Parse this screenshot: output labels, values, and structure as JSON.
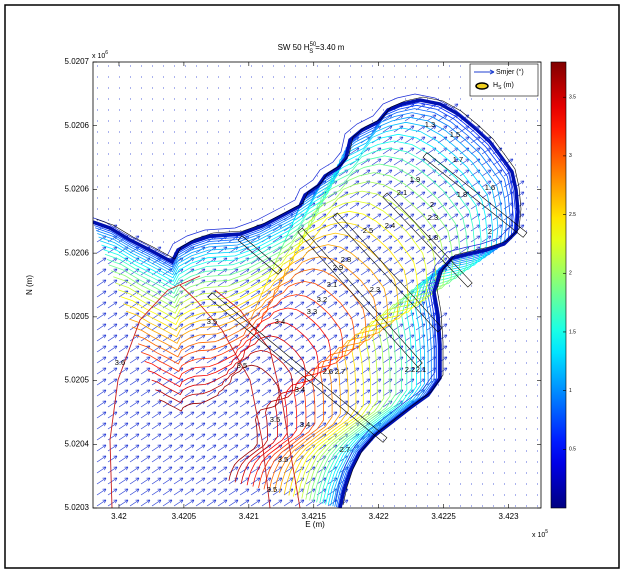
{
  "chart_data": {
    "type": "contour",
    "title": {
      "prefix": "SW 50 H",
      "sup": "50",
      "sub": "S",
      "suffix": "=3.40 m"
    },
    "xlabel": "E (m)",
    "ylabel": "N (m)",
    "x_multiplier": {
      "base": "x 10",
      "exponent": "5"
    },
    "y_multiplier": {
      "base": "x 10",
      "exponent": "6"
    },
    "xlim": [
      3.4198,
      3.42325
    ],
    "xticks": [
      3.42,
      3.4205,
      3.421,
      3.4215,
      3.422,
      3.4225,
      3.423
    ],
    "ylim": [
      5.02035,
      5.0207
    ],
    "yticks": [
      {
        "value": 5.0207,
        "label": "5.0207"
      },
      {
        "value": 5.02065,
        "label": "5.0206"
      },
      {
        "value": 5.0206,
        "label": "5.0206"
      },
      {
        "value": 5.02055,
        "label": "5.0206"
      },
      {
        "value": 5.0205,
        "label": "5.0205"
      },
      {
        "value": 5.02045,
        "label": "5.0205"
      },
      {
        "value": 5.0204,
        "label": "5.0204"
      },
      {
        "value": 5.02035,
        "label": "5.0203"
      }
    ],
    "clim": [
      0,
      3.8
    ],
    "cticks": [
      0.5,
      1,
      1.5,
      2,
      2.5,
      3,
      3.5
    ],
    "colormap": "jet",
    "legend": [
      {
        "name": "Smjer (°)",
        "color": "#1f3fd0"
      },
      {
        "name": "H",
        "sub": "S",
        "suffix": " (m)",
        "color": "#000000"
      }
    ],
    "contour_labels": [
      3.6,
      3.5,
      3.5,
      3.5,
      3.5,
      3.5,
      3.4,
      3.4,
      3.4,
      3.3,
      3.2,
      3.1,
      2.9,
      2.8,
      2.7,
      2.7,
      2.6,
      2.5,
      2.4,
      2.3,
      2.3,
      2.2,
      2.1,
      2.1,
      2,
      2,
      1.9,
      1.8,
      1.8,
      1.7,
      1.6,
      1.5,
      1.3
    ]
  }
}
